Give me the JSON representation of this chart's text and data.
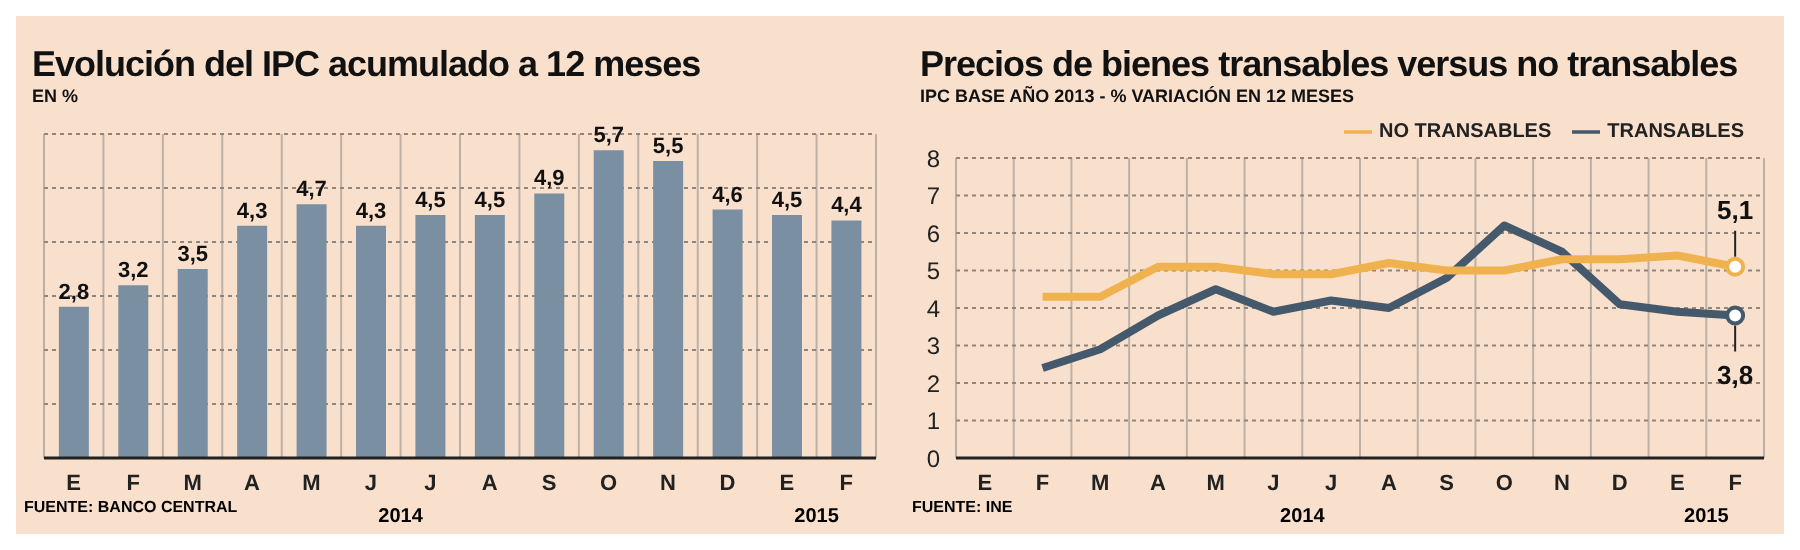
{
  "chart_data": [
    {
      "type": "bar",
      "title": "Evolución del IPC acumulado a 12 meses",
      "subtitle": "EN %",
      "categories": [
        "E",
        "F",
        "M",
        "A",
        "M",
        "J",
        "J",
        "A",
        "S",
        "O",
        "N",
        "D",
        "E",
        "F"
      ],
      "values": [
        2.8,
        3.2,
        3.5,
        4.3,
        4.7,
        4.3,
        4.5,
        4.5,
        4.9,
        5.7,
        5.5,
        4.6,
        4.5,
        4.4
      ],
      "value_labels": [
        "2,8",
        "3,2",
        "3,5",
        "4,3",
        "4,7",
        "4,3",
        "4,5",
        "4,5",
        "4,9",
        "5,7",
        "5,5",
        "4,6",
        "4,5",
        "4,4"
      ],
      "color": "#7b8fa2",
      "ylim": [
        0,
        6
      ],
      "yticks": [
        {
          "value": 0,
          "label": null
        },
        {
          "value": 1,
          "label": null
        },
        {
          "value": 2,
          "label": null
        },
        {
          "value": 3,
          "label": null
        },
        {
          "value": 4,
          "label": null
        },
        {
          "value": 5,
          "label": null
        },
        {
          "value": 6,
          "label": null
        }
      ],
      "tick_labels": "x",
      "grid": true,
      "annotations": [
        "2014",
        "2015",
        "FUENTE: BANCO CENTRAL"
      ]
    },
    {
      "type": "line",
      "title": "Precios de bienes transables versus no transables",
      "subtitle": "IPC BASE AÑO 2013 - % VARIACIÓN EN 12 MESES",
      "categories": [
        "E",
        "F",
        "M",
        "A",
        "M",
        "J",
        "J",
        "A",
        "S",
        "O",
        "N",
        "D",
        "E",
        "F"
      ],
      "series": [
        {
          "name": "TRANSABLES",
          "color": "#44596b",
          "values": [
            null,
            2.4,
            2.9,
            3.8,
            4.5,
            3.9,
            4.2,
            4.0,
            4.8,
            6.2,
            5.5,
            4.1,
            3.9,
            3.8
          ],
          "value_labels": [
            null,
            null,
            null,
            null,
            null,
            null,
            null,
            null,
            null,
            null,
            null,
            null,
            null,
            "3,8"
          ]
        },
        {
          "name": "NO TRANSABLES",
          "color": "#f0b24e",
          "values": [
            null,
            4.3,
            4.3,
            5.1,
            5.1,
            4.9,
            4.9,
            5.2,
            5.0,
            5.0,
            5.3,
            5.3,
            5.4,
            5.1
          ],
          "value_labels": [
            null,
            null,
            null,
            null,
            null,
            null,
            null,
            null,
            null,
            null,
            null,
            null,
            null,
            "5,1"
          ]
        }
      ],
      "ylim": [
        0,
        8
      ],
      "yticks": [
        0,
        1,
        2,
        3,
        4,
        5,
        6,
        7,
        8
      ],
      "grid": true,
      "legend": "top right",
      "annotations": [
        "2014",
        "2015",
        "FUENTE: INE"
      ]
    }
  ]
}
